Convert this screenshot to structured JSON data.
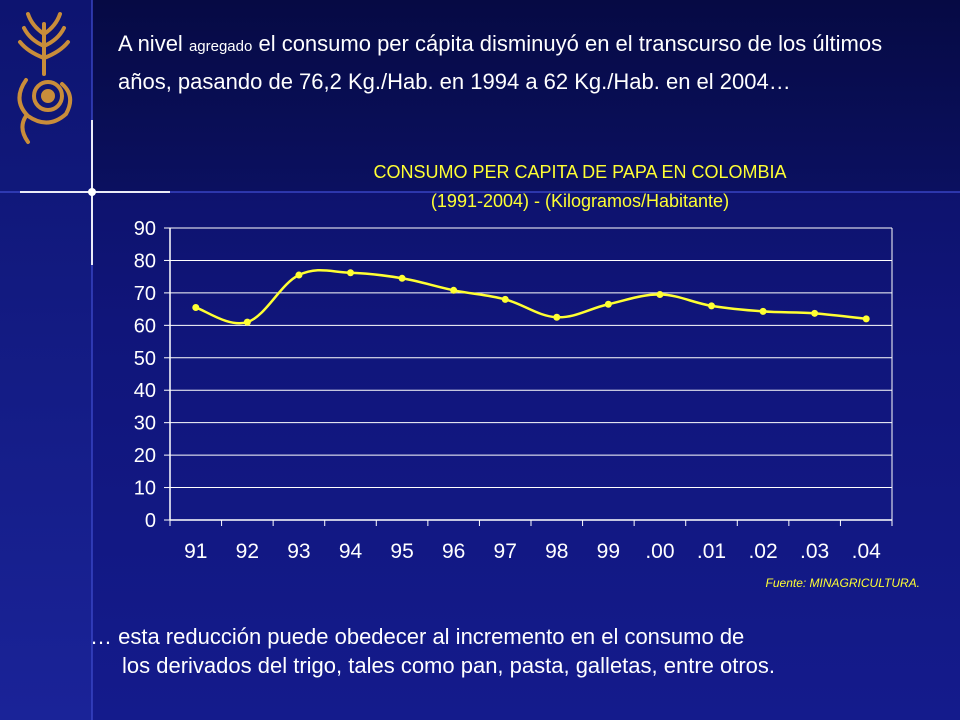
{
  "headline": {
    "part1": "A nivel ",
    "part_small": "agregado",
    "part2": " el consumo per cápita  disminuyó en el transcurso de los últimos años, pasando de 76,2 Kg./Hab. en 1994 a 62 Kg./Hab. en el 2004…"
  },
  "footer": {
    "line1": "… esta reducción puede obedecer al incremento en el consumo de",
    "line2": "los derivados del trigo, tales como pan, pasta, galletas, entre otros."
  },
  "source": "Fuente: MINAGRICULTURA.",
  "colors": {
    "series": "#ffff33",
    "axis": "#ffffff",
    "grid": "#ffffff"
  },
  "chart_data": {
    "type": "line",
    "title": "CONSUMO PER CAPITA DE PAPA EN COLOMBIA",
    "subtitle": "(1991-2004) - (Kilogramos/Habitante)",
    "categories": [
      "91",
      "92",
      "93",
      "94",
      "95",
      "96",
      "97",
      "98",
      "99",
      ".00",
      ".01",
      ".02",
      ".03",
      ".04"
    ],
    "values": [
      65.5,
      61,
      75.5,
      76.2,
      74.5,
      70.8,
      68,
      62.5,
      66.5,
      69.5,
      66,
      64.3,
      63.7,
      62
    ],
    "ylim": [
      0,
      90
    ],
    "yticks": [
      "0",
      "10",
      "20",
      "30",
      "40",
      "50",
      "60",
      "70",
      "80",
      "90"
    ],
    "grid": true,
    "legend": "none"
  }
}
